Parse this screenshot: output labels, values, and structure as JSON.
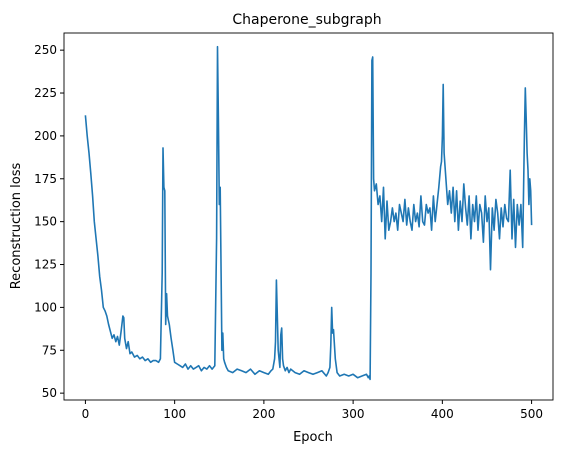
{
  "chart_data": {
    "type": "line",
    "title": "Chaperone_subgraph",
    "xlabel": "Epoch",
    "ylabel": "Reconstruction loss",
    "xlim": [
      -24,
      524
    ],
    "ylim": [
      46,
      260
    ],
    "xticks": [
      0,
      100,
      200,
      300,
      400,
      500
    ],
    "yticks": [
      50,
      75,
      100,
      125,
      150,
      175,
      200,
      225,
      250
    ],
    "grid": false,
    "line_color": "#1f77b4",
    "series": [
      {
        "x": [
          0,
          2,
          4,
          6,
          8,
          10,
          12,
          14,
          16,
          18,
          20,
          22,
          24,
          26,
          28,
          30,
          32,
          34,
          36,
          38,
          40,
          42,
          43,
          44,
          46,
          48,
          50,
          52,
          55,
          58,
          61,
          64,
          67,
          70,
          73,
          76,
          79,
          82,
          84,
          86,
          87,
          88,
          89,
          90,
          91,
          92,
          94,
          96,
          98,
          100,
          103,
          106,
          109,
          112,
          115,
          118,
          121,
          124,
          127,
          130,
          133,
          136,
          139,
          142,
          145,
          147,
          148,
          149,
          150,
          151,
          152,
          153,
          154,
          155,
          156,
          158,
          160,
          165,
          170,
          175,
          180,
          185,
          190,
          195,
          200,
          205,
          208,
          210,
          212,
          213,
          214,
          216,
          218,
          219,
          220,
          221,
          222,
          224,
          226,
          228,
          230,
          235,
          240,
          245,
          250,
          255,
          260,
          265,
          270,
          272,
          274,
          275,
          276,
          277,
          278,
          280,
          282,
          285,
          290,
          295,
          300,
          305,
          310,
          315,
          317,
          318,
          319,
          320,
          321,
          322,
          323,
          324,
          326,
          328,
          330,
          332,
          334,
          336,
          338,
          340,
          342,
          344,
          346,
          348,
          350,
          352,
          354,
          356,
          358,
          360,
          362,
          364,
          366,
          368,
          370,
          372,
          374,
          376,
          378,
          380,
          382,
          384,
          386,
          388,
          390,
          392,
          394,
          396,
          398,
          399,
          400,
          401,
          402,
          404,
          406,
          408,
          410,
          412,
          414,
          416,
          418,
          420,
          422,
          424,
          426,
          428,
          430,
          432,
          434,
          436,
          438,
          440,
          442,
          444,
          446,
          448,
          450,
          452,
          454,
          456,
          458,
          460,
          462,
          464,
          466,
          468,
          470,
          472,
          474,
          476,
          478,
          480,
          482,
          484,
          486,
          488,
          490,
          491,
          492,
          493,
          494,
          495,
          496,
          497,
          498,
          499,
          500
        ],
        "values": [
          212,
          200,
          190,
          178,
          165,
          150,
          140,
          130,
          118,
          110,
          100,
          98,
          95,
          90,
          86,
          82,
          84,
          80,
          83,
          78,
          86,
          95,
          94,
          82,
          76,
          80,
          73,
          74,
          71,
          72,
          70,
          71,
          69,
          70,
          68,
          69,
          69,
          68,
          70,
          120,
          193,
          170,
          168,
          90,
          108,
          95,
          90,
          82,
          75,
          68,
          67,
          66,
          65,
          67,
          64,
          66,
          64,
          65,
          66,
          63,
          65,
          64,
          66,
          64,
          66,
          140,
          252,
          210,
          160,
          170,
          120,
          75,
          85,
          70,
          68,
          65,
          63,
          62,
          64,
          63,
          62,
          64,
          61,
          63,
          62,
          61,
          63,
          64,
          70,
          80,
          116,
          75,
          65,
          84,
          88,
          70,
          66,
          63,
          65,
          62,
          64,
          62,
          61,
          63,
          62,
          61,
          62,
          63,
          60,
          62,
          65,
          78,
          100,
          85,
          87,
          70,
          62,
          60,
          61,
          60,
          61,
          59,
          60,
          61,
          59,
          60,
          58,
          120,
          244,
          246,
          175,
          168,
          172,
          160,
          165,
          150,
          170,
          140,
          162,
          145,
          150,
          158,
          150,
          155,
          145,
          160,
          155,
          150,
          163,
          148,
          158,
          150,
          145,
          160,
          150,
          155,
          147,
          165,
          150,
          148,
          160,
          155,
          158,
          145,
          165,
          150,
          160,
          170,
          182,
          185,
          200,
          230,
          190,
          175,
          160,
          168,
          155,
          170,
          150,
          168,
          145,
          162,
          150,
          172,
          158,
          148,
          165,
          140,
          160,
          150,
          165,
          145,
          160,
          155,
          138,
          165,
          150,
          158,
          122,
          158,
          145,
          163,
          155,
          140,
          158,
          147,
          160,
          152,
          150,
          180,
          140,
          163,
          135,
          160,
          148,
          160,
          135,
          170,
          200,
          228,
          210,
          190,
          180,
          160,
          175,
          168,
          148
        ]
      }
    ]
  }
}
